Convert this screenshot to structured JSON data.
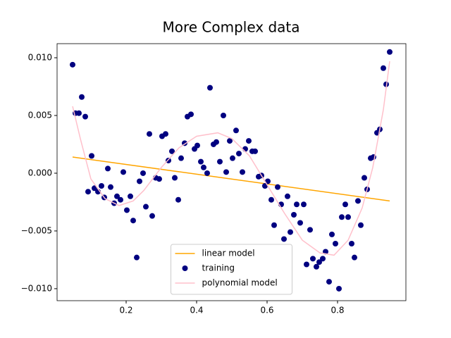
{
  "chart_data": {
    "type": "scatter",
    "title": "More Complex data",
    "xlim": [
      0.004,
      0.994
    ],
    "xticks": [
      0.2,
      0.4,
      0.6,
      0.8
    ],
    "ylim": [
      -0.01104,
      0.01122
    ],
    "yticks": [
      {
        "value": -0.01,
        "label": "−0.010"
      },
      {
        "value": -0.005,
        "label": "−0.005"
      },
      {
        "value": 0,
        "label": "0.000"
      },
      {
        "value": 0.005,
        "label": "0.005"
      },
      {
        "value": 0.01,
        "label": "0.010"
      }
    ],
    "legend": "lower center",
    "series": [
      {
        "name": "linear model",
        "type": "line",
        "color": "orange",
        "x": [
          0.048,
          0.948
        ],
        "y": [
          0.0014,
          -0.0024
        ]
      },
      {
        "name": "training",
        "type": "scatter",
        "color": "navy",
        "x": [
          0.048,
          0.056,
          0.066,
          0.074,
          0.084,
          0.092,
          0.102,
          0.11,
          0.12,
          0.13,
          0.138,
          0.148,
          0.156,
          0.166,
          0.174,
          0.184,
          0.192,
          0.202,
          0.212,
          0.22,
          0.23,
          0.238,
          0.248,
          0.256,
          0.266,
          0.274,
          0.284,
          0.294,
          0.302,
          0.312,
          0.32,
          0.33,
          0.338,
          0.348,
          0.356,
          0.366,
          0.374,
          0.384,
          0.394,
          0.402,
          0.412,
          0.42,
          0.43,
          0.438,
          0.448,
          0.456,
          0.466,
          0.476,
          0.484,
          0.494,
          0.502,
          0.512,
          0.52,
          0.53,
          0.538,
          0.548,
          0.558,
          0.566,
          0.576,
          0.584,
          0.594,
          0.602,
          0.612,
          0.62,
          0.63,
          0.64,
          0.648,
          0.658,
          0.666,
          0.676,
          0.684,
          0.694,
          0.704,
          0.712,
          0.722,
          0.73,
          0.74,
          0.748,
          0.758,
          0.766,
          0.776,
          0.784,
          0.794,
          0.804,
          0.812,
          0.822,
          0.83,
          0.84,
          0.848,
          0.858,
          0.866,
          0.876,
          0.884,
          0.894,
          0.902,
          0.912,
          0.92,
          0.93,
          0.938,
          0.948
        ],
        "y": [
          0.0094,
          0.0052,
          0.0052,
          0.0066,
          0.0049,
          -0.0016,
          0.0015,
          -0.0013,
          -0.0016,
          -0.0011,
          -0.0021,
          0.0004,
          -0.0012,
          -0.0026,
          -0.002,
          -0.0023,
          0.0001,
          -0.0032,
          -0.002,
          -0.0041,
          -0.0073,
          -0.0007,
          0.0,
          -0.0029,
          0.0034,
          -0.0037,
          -0.0004,
          -0.0005,
          0.0032,
          0.0034,
          0.0011,
          0.0019,
          -0.0004,
          -0.0023,
          0.0013,
          0.0026,
          0.0049,
          0.0051,
          0.0021,
          0.0024,
          0.001,
          0.0005,
          0.0,
          0.0074,
          0.0025,
          0.0027,
          0.001,
          0.005,
          0.0001,
          0.0028,
          0.0013,
          0.0037,
          0.0017,
          0.0001,
          0.0021,
          0.0028,
          0.0019,
          0.0019,
          -0.0003,
          -0.0002,
          -0.0011,
          -0.0007,
          -0.0023,
          -0.0045,
          -0.0012,
          -0.0027,
          -0.0057,
          -0.002,
          -0.0051,
          -0.0036,
          -0.0027,
          -0.0043,
          -0.0027,
          -0.0079,
          -0.0049,
          -0.0074,
          -0.0081,
          -0.0077,
          -0.0074,
          -0.0068,
          -0.0094,
          -0.0053,
          -0.0061,
          -0.01,
          -0.0038,
          -0.0027,
          -0.0038,
          -0.0061,
          -0.0073,
          -0.0024,
          -0.0045,
          -0.0004,
          -0.0014,
          0.0013,
          0.0014,
          0.0035,
          0.0038,
          0.0091,
          0.0077,
          0.0105
        ]
      },
      {
        "name": "polynomial model",
        "type": "line",
        "color": "pink",
        "x": [
          0.048,
          0.07,
          0.1,
          0.14,
          0.18,
          0.22,
          0.25,
          0.3,
          0.35,
          0.4,
          0.46,
          0.5,
          0.55,
          0.6,
          0.65,
          0.7,
          0.75,
          0.79,
          0.83,
          0.87,
          0.9,
          0.93,
          0.948
        ],
        "y": [
          0.0058,
          0.003,
          -0.0005,
          -0.0022,
          -0.0028,
          -0.0024,
          -0.0015,
          0.0005,
          0.0022,
          0.0032,
          0.0035,
          0.003,
          0.0015,
          -0.001,
          -0.0035,
          -0.0058,
          -0.0069,
          -0.0071,
          -0.0058,
          -0.003,
          0.0005,
          0.0055,
          0.0097
        ]
      }
    ]
  }
}
